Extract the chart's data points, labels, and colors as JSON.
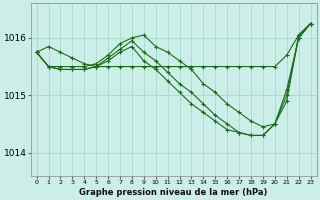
{
  "title": "Graphe pression niveau de la mer (hPa)",
  "background_color": "#cceee8",
  "grid_color": "#aaddcc",
  "line_color": "#1a6b1a",
  "xlim": [
    -0.5,
    23.5
  ],
  "ylim": [
    1013.6,
    1016.6
  ],
  "yticks": [
    1014,
    1015,
    1016
  ],
  "xticks": [
    0,
    1,
    2,
    3,
    4,
    5,
    6,
    7,
    8,
    9,
    10,
    11,
    12,
    13,
    14,
    15,
    16,
    17,
    18,
    19,
    20,
    21,
    22,
    23
  ],
  "series": [
    [
      0,
      1015.75,
      1,
      1015.85,
      2,
      1015.75,
      3,
      1015.65,
      4,
      1015.55,
      5,
      1015.5,
      6,
      1015.5,
      7,
      1015.5,
      8,
      1015.5,
      9,
      1015.5,
      10,
      1015.5,
      11,
      1015.5,
      12,
      1015.5,
      13,
      1015.5,
      14,
      1015.5,
      15,
      1015.5,
      16,
      1015.5,
      17,
      1015.5,
      18,
      1015.5,
      19,
      1015.5,
      20,
      1015.5,
      21,
      1015.7,
      22,
      1016.05,
      23,
      1016.25
    ],
    [
      0,
      1015.75,
      1,
      1015.5,
      2,
      1015.5,
      3,
      1015.5,
      4,
      1015.5,
      5,
      1015.55,
      6,
      1015.7,
      7,
      1015.9,
      8,
      1016.0,
      9,
      1016.05,
      10,
      1015.85,
      11,
      1015.75,
      12,
      1015.6,
      13,
      1015.45,
      14,
      1015.2,
      15,
      1015.05,
      16,
      1014.85,
      17,
      1014.7,
      18,
      1014.55,
      19,
      1014.45,
      20,
      1014.5,
      21,
      1014.9,
      22,
      1016.05,
      23,
      1016.25
    ],
    [
      0,
      1015.75,
      1,
      1015.5,
      2,
      1015.45,
      3,
      1015.45,
      4,
      1015.45,
      5,
      1015.5,
      6,
      1015.65,
      7,
      1015.8,
      8,
      1015.95,
      9,
      1015.75,
      10,
      1015.6,
      11,
      1015.4,
      12,
      1015.2,
      13,
      1015.05,
      14,
      1014.85,
      15,
      1014.65,
      16,
      1014.5,
      17,
      1014.35,
      18,
      1014.3,
      19,
      1014.3,
      20,
      1014.5,
      21,
      1015.1,
      22,
      1016.0,
      23,
      1016.25
    ],
    [
      0,
      1015.75,
      1,
      1015.5,
      2,
      1015.45,
      3,
      1015.45,
      4,
      1015.45,
      5,
      1015.5,
      6,
      1015.6,
      7,
      1015.75,
      8,
      1015.85,
      9,
      1015.6,
      10,
      1015.45,
      11,
      1015.25,
      12,
      1015.05,
      13,
      1014.85,
      14,
      1014.7,
      15,
      1014.55,
      16,
      1014.4,
      17,
      1014.35,
      18,
      1014.3,
      19,
      1014.3,
      20,
      1014.5,
      21,
      1015.0,
      22,
      1016.0,
      23,
      1016.25
    ]
  ]
}
